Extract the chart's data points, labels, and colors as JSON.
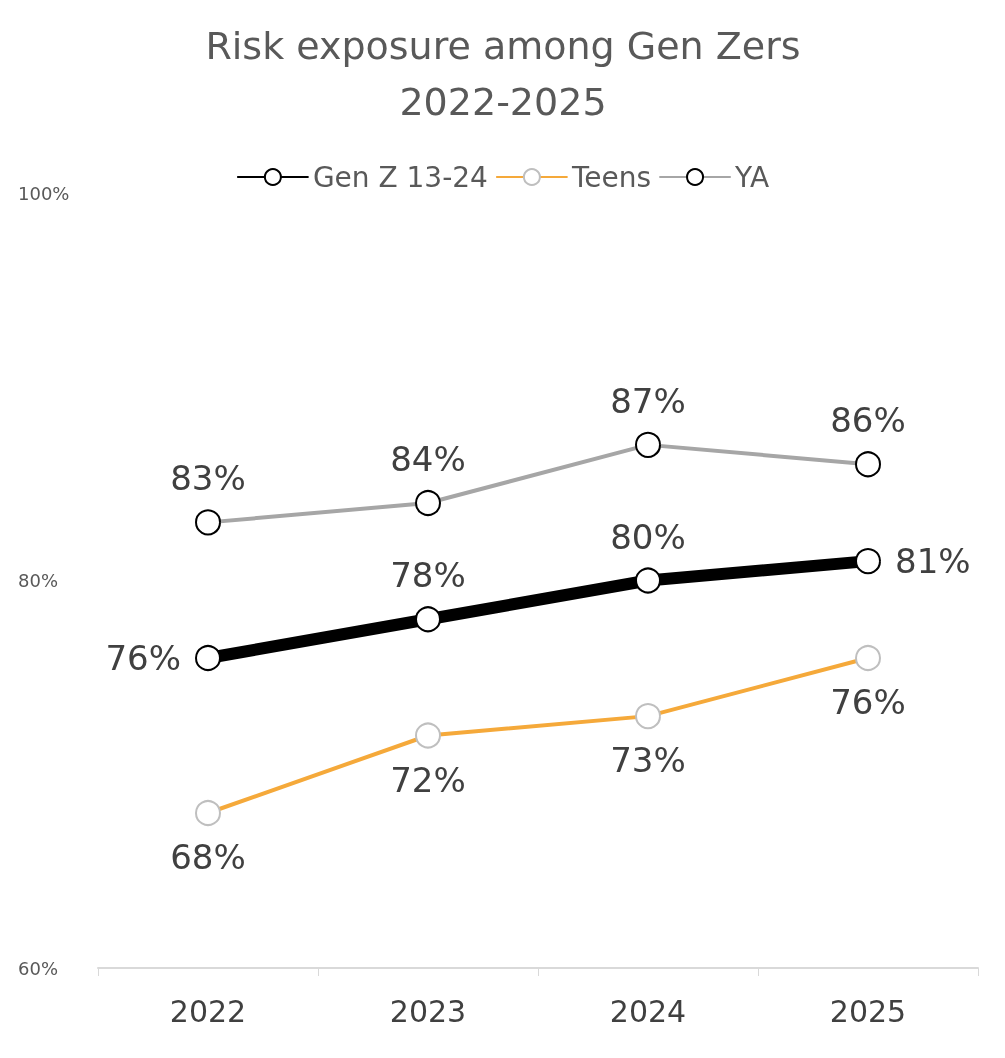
{
  "chart_data": {
    "type": "line",
    "title": "Risk exposure among Gen Zers\n2022-2025",
    "categories": [
      "2022",
      "2023",
      "2024",
      "2025"
    ],
    "series": [
      {
        "name": "Gen Z 13-24",
        "color": "#000000",
        "values": [
          76,
          78,
          80,
          81
        ],
        "value_labels": [
          "76%",
          "78%",
          "80%",
          "81%"
        ]
      },
      {
        "name": "Teens",
        "color": "#f5a93a",
        "values": [
          68,
          72,
          73,
          76
        ],
        "value_labels": [
          "68%",
          "72%",
          "73%",
          "76%"
        ]
      },
      {
        "name": "YA",
        "color": "#a6a6a6",
        "values": [
          83,
          84,
          87,
          86
        ],
        "value_labels": [
          "83%",
          "84%",
          "87%",
          "86%"
        ]
      }
    ],
    "ylim": [
      60,
      100
    ],
    "yticks": [
      {
        "value": 60,
        "label": "60%"
      },
      {
        "value": 80,
        "label": "80%"
      },
      {
        "value": 100,
        "label": "100%"
      }
    ],
    "grid": false,
    "legend": "top",
    "marker": "circle",
    "line_style": "solid"
  }
}
